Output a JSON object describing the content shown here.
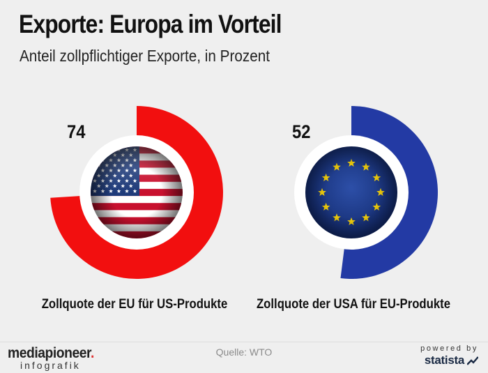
{
  "title": "Exporte: Europa im Vorteil",
  "subtitle": "Anteil zollpflichtiger Exporte, in Prozent",
  "source": "Quelle: WTO",
  "brand": {
    "name": "mediapioneer",
    "dot": ".",
    "sub": "infografik"
  },
  "powered": {
    "by": "powered by",
    "name": "statista"
  },
  "colors": {
    "eu_tariff_ring": "#f20f0f",
    "us_tariff_ring": "#233aa4",
    "background": "#efefef",
    "inner_disc": "#ffffff"
  },
  "chart_data": [
    {
      "type": "pie",
      "value": 74,
      "max": 100,
      "category": "Zollquote der EU für US-Produkte",
      "icon": "us-flag-icon",
      "color": "#f20f0f"
    },
    {
      "type": "pie",
      "value": 52,
      "max": 100,
      "category": "Zollquote der USA für EU-Produkte",
      "icon": "eu-flag-icon",
      "color": "#233aa4"
    }
  ]
}
